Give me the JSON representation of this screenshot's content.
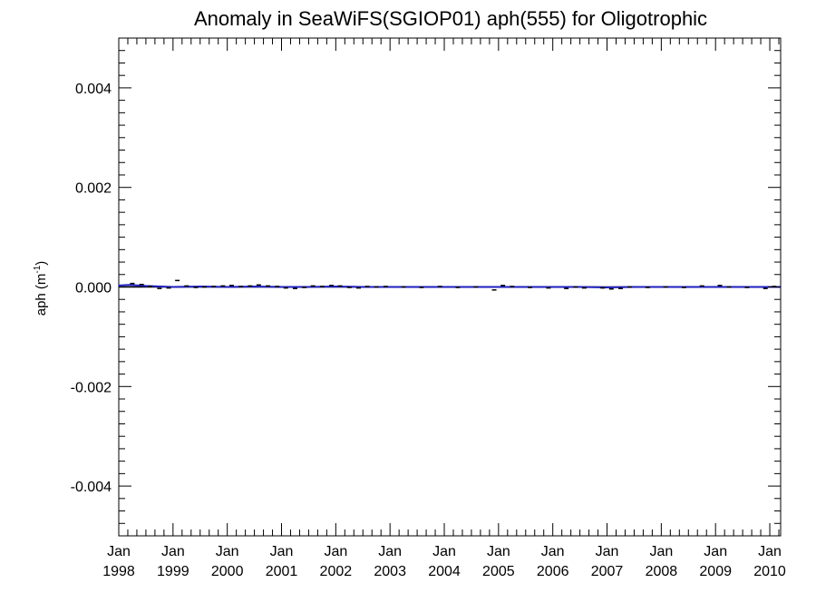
{
  "chart_data": {
    "type": "line",
    "title": "Anomaly in SeaWiFS(SGIOP01) aph(555) for Oligotrophic",
    "xlabel": "",
    "ylabel": "aph (m",
    "ylabel_sup": "-1",
    "ylabel_close": ")",
    "xlim": [
      1998.0,
      2010.2
    ],
    "ylim": [
      -0.005,
      0.005
    ],
    "y_ticks": [
      -0.004,
      -0.002,
      0.0,
      0.002,
      0.004
    ],
    "y_tick_labels": [
      "-0.004",
      "-0.002",
      "0.000",
      "0.002",
      "0.004"
    ],
    "x_ticks": [
      1998,
      1999,
      2000,
      2001,
      2002,
      2003,
      2004,
      2005,
      2006,
      2007,
      2008,
      2009,
      2010
    ],
    "x_tick_labels": [
      [
        "Jan",
        "1998"
      ],
      [
        "Jan",
        "1999"
      ],
      [
        "Jan",
        "2000"
      ],
      [
        "Jan",
        "2001"
      ],
      [
        "Jan",
        "2002"
      ],
      [
        "Jan",
        "2003"
      ],
      [
        "Jan",
        "2004"
      ],
      [
        "Jan",
        "2005"
      ],
      [
        "Jan",
        "2006"
      ],
      [
        "Jan",
        "2007"
      ],
      [
        "Jan",
        "2008"
      ],
      [
        "Jan",
        "2009"
      ],
      [
        "Jan",
        "2010"
      ]
    ],
    "grid": false,
    "series": [
      {
        "style": "line",
        "color": "#1f1fbf",
        "x": [
          1998.0,
          1998.2,
          1998.5,
          1999.0,
          1999.5,
          2000.0,
          2000.5,
          2001.0,
          2001.5,
          2002.0,
          2002.5,
          2003.0,
          2003.5,
          2004.0,
          2004.5,
          2005.0,
          2005.5,
          2006.0,
          2006.5,
          2007.0,
          2007.5,
          2008.0,
          2008.5,
          2009.0,
          2009.5,
          2010.0,
          2010.2
        ],
        "values": [
          3e-05,
          4e-05,
          2e-05,
          0.0,
          1e-05,
          0.0,
          1e-05,
          0.0,
          0.0,
          1e-05,
          0.0,
          0.0,
          0.0,
          0.0,
          0.0,
          0.0,
          0.0,
          0.0,
          0.0,
          -1e-05,
          0.0,
          0.0,
          0.0,
          0.0,
          0.0,
          0.0,
          0.0
        ]
      },
      {
        "style": "monthly-bars",
        "color": "#000000",
        "x": [
          1998.25,
          1998.42,
          1998.58,
          1998.75,
          1998.92,
          1999.08,
          1999.25,
          1999.42,
          1999.58,
          1999.75,
          1999.92,
          2000.08,
          2000.25,
          2000.42,
          2000.58,
          2000.75,
          2000.92,
          2001.08,
          2001.25,
          2001.42,
          2001.58,
          2001.75,
          2001.92,
          2002.08,
          2002.25,
          2002.42,
          2002.58,
          2002.75,
          2002.92,
          2003.25,
          2003.58,
          2003.92,
          2004.25,
          2004.58,
          2004.92,
          2005.08,
          2005.25,
          2005.58,
          2005.92,
          2006.25,
          2006.42,
          2006.58,
          2006.92,
          2007.08,
          2007.25,
          2007.42,
          2007.75,
          2008.08,
          2008.42,
          2008.75,
          2009.08,
          2009.25,
          2009.58,
          2009.92,
          2010.08
        ],
        "values": [
          7e-05,
          5e-05,
          1e-05,
          -3e-05,
          -2e-05,
          0.00013,
          2e-05,
          -1e-05,
          0.0,
          1e-05,
          2e-05,
          3e-05,
          1e-05,
          2e-05,
          4e-05,
          2e-05,
          1e-05,
          -2e-05,
          -3e-05,
          -1e-05,
          2e-05,
          1e-05,
          3e-05,
          2e-05,
          -1e-05,
          -2e-05,
          1e-05,
          0.0,
          1e-05,
          0.0,
          -1e-05,
          1e-05,
          -1e-05,
          0.0,
          -6e-05,
          3e-05,
          1e-05,
          -1e-05,
          -2e-05,
          -3e-05,
          0.0,
          -2e-05,
          -2e-05,
          -4e-05,
          -3e-05,
          0.0,
          -1e-05,
          0.0,
          -1e-05,
          2e-05,
          3e-05,
          0.0,
          -1e-05,
          -3e-05,
          1e-05
        ]
      }
    ]
  }
}
